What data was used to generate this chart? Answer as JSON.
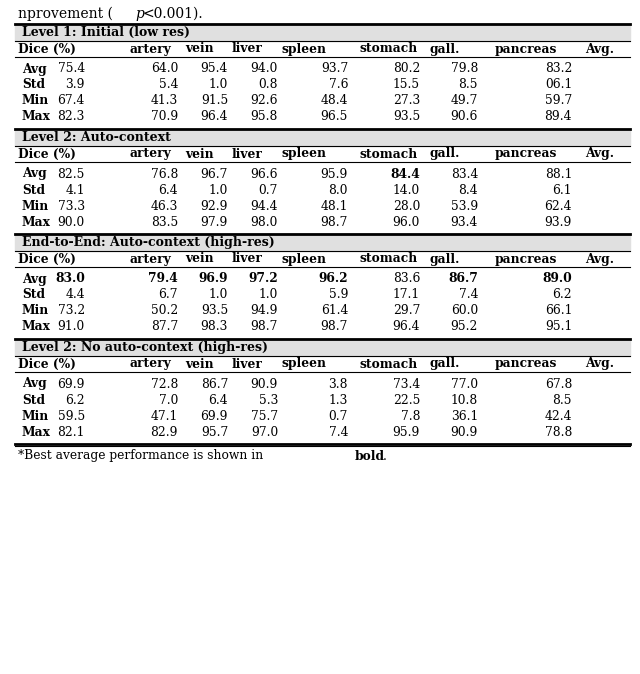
{
  "sections": [
    {
      "header": "Level 1: Initial (low res)",
      "rows": [
        {
          "label": "Avg",
          "values": [
            "75.4",
            "64.0",
            "95.4",
            "94.0",
            "93.7",
            "80.2",
            "79.8",
            "83.2"
          ],
          "bold_vals": []
        },
        {
          "label": "Std",
          "values": [
            "3.9",
            "5.4",
            "1.0",
            "0.8",
            "7.6",
            "15.5",
            "8.5",
            "06.1"
          ],
          "bold_vals": []
        },
        {
          "label": "Min",
          "values": [
            "67.4",
            "41.3",
            "91.5",
            "92.6",
            "48.4",
            "27.3",
            "49.7",
            "59.7"
          ],
          "bold_vals": []
        },
        {
          "label": "Max",
          "values": [
            "82.3",
            "70.9",
            "96.4",
            "95.8",
            "96.5",
            "93.5",
            "90.6",
            "89.4"
          ],
          "bold_vals": []
        }
      ]
    },
    {
      "header": "Level 2: Auto-context",
      "rows": [
        {
          "label": "Avg",
          "values": [
            "82.5",
            "76.8",
            "96.7",
            "96.6",
            "95.9",
            "84.4",
            "83.4",
            "88.1"
          ],
          "bold_vals": [
            "84.4"
          ]
        },
        {
          "label": "Std",
          "values": [
            "4.1",
            "6.4",
            "1.0",
            "0.7",
            "8.0",
            "14.0",
            "8.4",
            "6.1"
          ],
          "bold_vals": []
        },
        {
          "label": "Min",
          "values": [
            "73.3",
            "46.3",
            "92.9",
            "94.4",
            "48.1",
            "28.0",
            "53.9",
            "62.4"
          ],
          "bold_vals": []
        },
        {
          "label": "Max",
          "values": [
            "90.0",
            "83.5",
            "97.9",
            "98.0",
            "98.7",
            "96.0",
            "93.4",
            "93.9"
          ],
          "bold_vals": []
        }
      ]
    },
    {
      "header": "End-to-End: Auto-context (high-res)",
      "rows": [
        {
          "label": "Avg",
          "values": [
            "83.0",
            "79.4",
            "96.9",
            "97.2",
            "96.2",
            "83.6",
            "86.7",
            "89.0"
          ],
          "bold_vals": [
            "83.0",
            "79.4",
            "96.9",
            "97.2",
            "96.2",
            "86.7",
            "89.0"
          ]
        },
        {
          "label": "Std",
          "values": [
            "4.4",
            "6.7",
            "1.0",
            "1.0",
            "5.9",
            "17.1",
            "7.4",
            "6.2"
          ],
          "bold_vals": []
        },
        {
          "label": "Min",
          "values": [
            "73.2",
            "50.2",
            "93.5",
            "94.9",
            "61.4",
            "29.7",
            "60.0",
            "66.1"
          ],
          "bold_vals": []
        },
        {
          "label": "Max",
          "values": [
            "91.0",
            "87.7",
            "98.3",
            "98.7",
            "98.7",
            "96.4",
            "95.2",
            "95.1"
          ],
          "bold_vals": []
        }
      ]
    },
    {
      "header": "Level 2: No auto-context (high-res)",
      "rows": [
        {
          "label": "Avg",
          "values": [
            "69.9",
            "72.8",
            "86.7",
            "90.9",
            "3.8",
            "73.4",
            "77.0",
            "67.8"
          ],
          "bold_vals": []
        },
        {
          "label": "Std",
          "values": [
            "6.2",
            "7.0",
            "6.4",
            "5.3",
            "1.3",
            "22.5",
            "10.8",
            "8.5"
          ],
          "bold_vals": []
        },
        {
          "label": "Min",
          "values": [
            "59.5",
            "47.1",
            "69.9",
            "75.7",
            "0.7",
            "7.8",
            "36.1",
            "42.4"
          ],
          "bold_vals": []
        },
        {
          "label": "Max",
          "values": [
            "82.1",
            "82.9",
            "95.7",
            "97.0",
            "7.4",
            "95.9",
            "90.9",
            "78.8"
          ],
          "bold_vals": []
        }
      ]
    }
  ],
  "col_headers": [
    "Dice (%)",
    "artery",
    "vein",
    "liver",
    "spleen",
    "stomach",
    "gall.",
    "pancreas",
    "Avg."
  ],
  "bg_color": "#ffffff",
  "section_header_bg": "#e0e0e0",
  "font_size": 8.8,
  "title_font_size": 10.0,
  "footnote": "*Best average performance is shown in ",
  "footnote_bold": "bold",
  "footnote_end": "."
}
